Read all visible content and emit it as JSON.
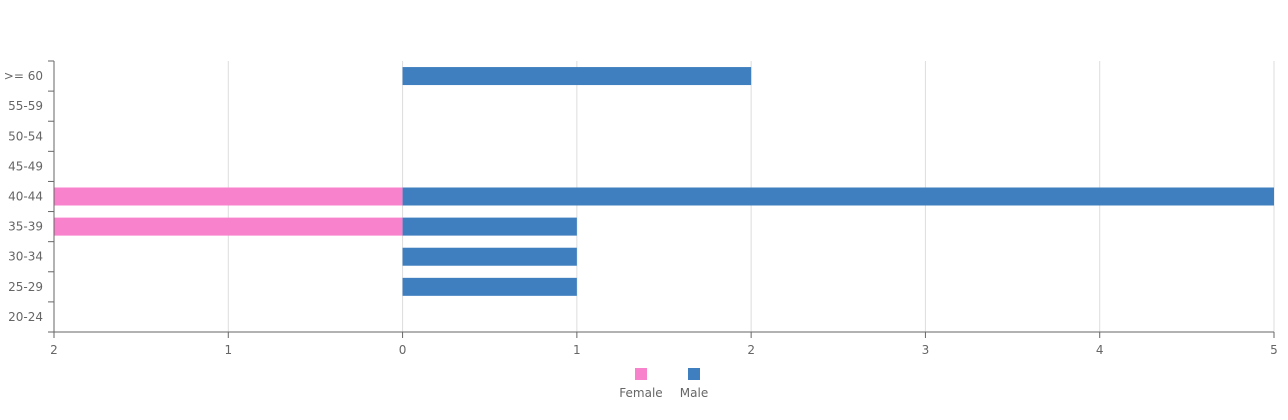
{
  "chart_data": {
    "type": "bar",
    "orientation": "horizontal",
    "layout": "population-pyramid",
    "categories": [
      ">= 60",
      "55-59",
      "50-54",
      "45-49",
      "40-44",
      "35-39",
      "30-34",
      "25-29",
      "20-24"
    ],
    "series": [
      {
        "name": "Female",
        "values": [
          0,
          0,
          0,
          0,
          2,
          2,
          0,
          0,
          0
        ],
        "color": "#f982cc",
        "side": "left"
      },
      {
        "name": "Male",
        "values": [
          2,
          0,
          0,
          0,
          5,
          1,
          1,
          1,
          0
        ],
        "color": "#3f7fbf",
        "side": "right"
      }
    ],
    "x_ticks": [
      "2",
      "1",
      "0",
      "1",
      "2",
      "3",
      "4",
      "5"
    ],
    "xlim": [
      -2,
      5
    ],
    "grid": true,
    "legend_position": "bottom-center",
    "grid_color": "#dddddd",
    "axis_color": "#666666",
    "text_color": "#666666"
  }
}
